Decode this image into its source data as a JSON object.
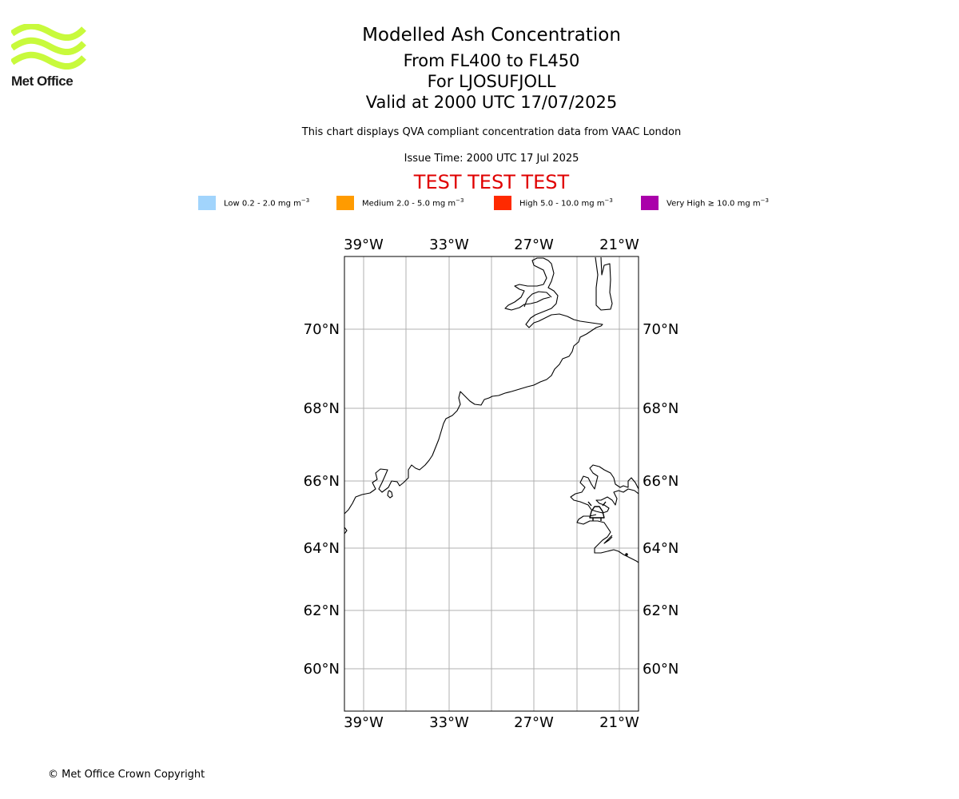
{
  "logo": {
    "brand": "Met Office",
    "color": "#c8fa3c"
  },
  "titles": {
    "main": "Modelled Ash Concentration",
    "levels": "From FL400 to FL450",
    "volcano": "For LJOSUFJOLL",
    "valid": "Valid at 2000 UTC 17/07/2025"
  },
  "subtitle": "This chart displays QVA compliant concentration data from VAAC London",
  "issue_time": "Issue Time: 2000 UTC 17 Jul 2025",
  "test_banner": "TEST TEST TEST",
  "legend": [
    {
      "label": "Low 0.2 - 2.0 mg m",
      "color": "#a1d4fc"
    },
    {
      "label": "Medium 2.0 - 5.0 mg m",
      "color": "#ff9b00"
    },
    {
      "label": "High 5.0 - 10.0 mg m",
      "color": "#ff2a00"
    },
    {
      "label": "Very High ≥ 10.0 mg m",
      "color": "#aa00aa"
    }
  ],
  "legend_unit_exponent": "−3",
  "map": {
    "lon_ticks": [
      "39°W",
      "33°W",
      "27°W",
      "21°W"
    ],
    "lat_ticks": [
      "70°N",
      "68°N",
      "66°N",
      "64°N",
      "62°N",
      "60°N"
    ],
    "grid_color": "#b0b0b0"
  },
  "copyright": "© Met Office Crown Copyright"
}
